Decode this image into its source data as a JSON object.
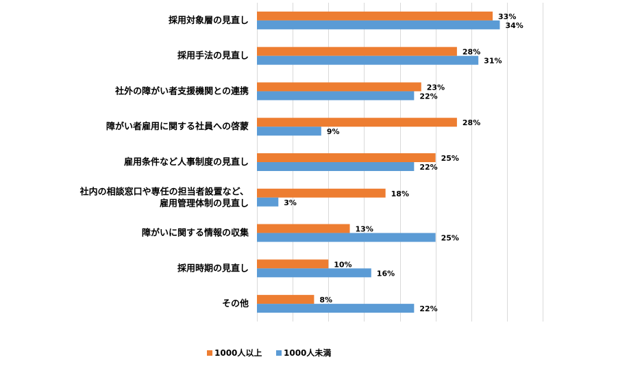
{
  "chart_data": {
    "type": "bar",
    "orientation": "horizontal",
    "categories": [
      [
        "採用対象層の見直し"
      ],
      [
        "採用手法の見直し"
      ],
      [
        "社外の障がい者支援機関との連携"
      ],
      [
        "障がい者雇用に関する社員への啓蒙"
      ],
      [
        "雇用条件など人事制度の見直し"
      ],
      [
        "社内の相談窓口や専任の担当者設置など、",
        "雇用管理体制の見直し"
      ],
      [
        "障がいに関する情報の収集"
      ],
      [
        "採用時期の見直し"
      ],
      [
        "その他"
      ]
    ],
    "series": [
      {
        "name": "1000人以上",
        "color": "#ED7D31",
        "values": [
          33,
          28,
          23,
          28,
          25,
          18,
          13,
          10,
          8
        ],
        "labels": [
          "33%",
          "28%",
          "23%",
          "28%",
          "25%",
          "18%",
          "13%",
          "10%",
          "8%"
        ]
      },
      {
        "name": "1000人未満",
        "color": "#5B9BD5",
        "values": [
          34,
          31,
          22,
          9,
          22,
          3,
          25,
          16,
          22
        ],
        "labels": [
          "34%",
          "31%",
          "22%",
          "9%",
          "22%",
          "3%",
          "25%",
          "16%",
          "22%"
        ]
      }
    ],
    "xlim": [
      0,
      40
    ],
    "grid": true,
    "legend_position": "bottom"
  }
}
